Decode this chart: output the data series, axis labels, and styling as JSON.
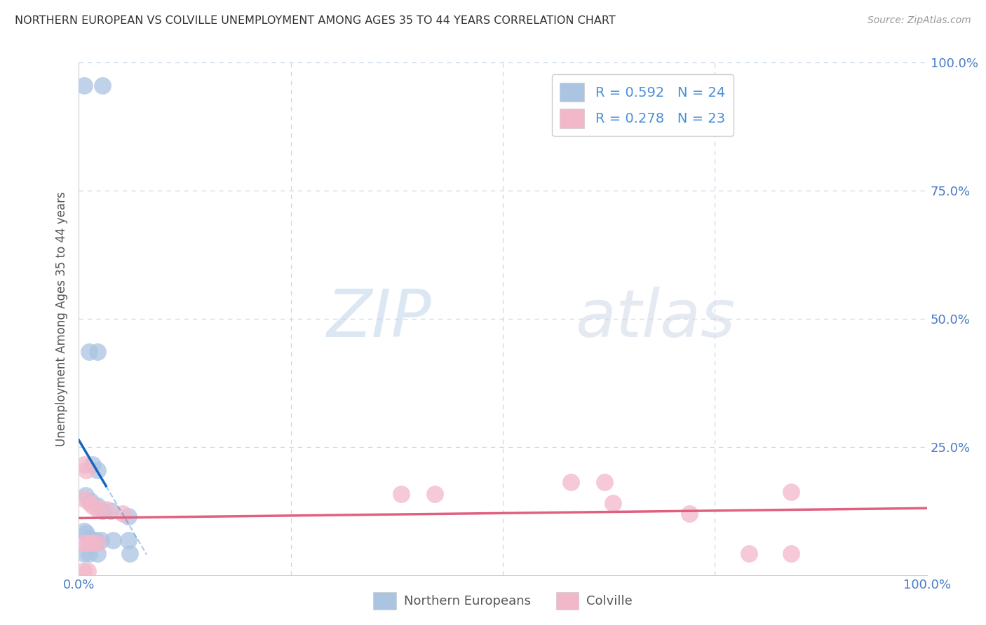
{
  "title": "NORTHERN EUROPEAN VS COLVILLE UNEMPLOYMENT AMONG AGES 35 TO 44 YEARS CORRELATION CHART",
  "source": "Source: ZipAtlas.com",
  "ylabel": "Unemployment Among Ages 35 to 44 years",
  "xlim": [
    0,
    1.0
  ],
  "ylim": [
    0,
    1.0
  ],
  "blue_color": "#aac4e2",
  "pink_color": "#f2b8ca",
  "blue_line_color": "#1565c0",
  "pink_line_color": "#e06080",
  "blue_scatter": [
    [
      0.006,
      0.955
    ],
    [
      0.028,
      0.955
    ],
    [
      0.012,
      0.435
    ],
    [
      0.022,
      0.435
    ],
    [
      0.016,
      0.215
    ],
    [
      0.022,
      0.205
    ],
    [
      0.008,
      0.155
    ],
    [
      0.014,
      0.145
    ],
    [
      0.022,
      0.135
    ],
    [
      0.028,
      0.125
    ],
    [
      0.038,
      0.125
    ],
    [
      0.058,
      0.115
    ],
    [
      0.006,
      0.085
    ],
    [
      0.009,
      0.082
    ],
    [
      0.012,
      0.072
    ],
    [
      0.016,
      0.068
    ],
    [
      0.02,
      0.068
    ],
    [
      0.026,
      0.068
    ],
    [
      0.04,
      0.068
    ],
    [
      0.058,
      0.068
    ],
    [
      0.006,
      0.042
    ],
    [
      0.012,
      0.042
    ],
    [
      0.022,
      0.042
    ],
    [
      0.06,
      0.042
    ]
  ],
  "pink_scatter": [
    [
      0.006,
      0.215
    ],
    [
      0.009,
      0.205
    ],
    [
      0.006,
      0.148
    ],
    [
      0.012,
      0.142
    ],
    [
      0.016,
      0.135
    ],
    [
      0.022,
      0.128
    ],
    [
      0.032,
      0.128
    ],
    [
      0.052,
      0.12
    ],
    [
      0.006,
      0.062
    ],
    [
      0.01,
      0.062
    ],
    [
      0.016,
      0.062
    ],
    [
      0.022,
      0.062
    ],
    [
      0.38,
      0.158
    ],
    [
      0.42,
      0.158
    ],
    [
      0.58,
      0.182
    ],
    [
      0.62,
      0.182
    ],
    [
      0.63,
      0.14
    ],
    [
      0.72,
      0.12
    ],
    [
      0.79,
      0.042
    ],
    [
      0.84,
      0.042
    ],
    [
      0.84,
      0.162
    ],
    [
      0.005,
      0.008
    ],
    [
      0.01,
      0.008
    ]
  ],
  "R_blue": 0.592,
  "N_blue": 24,
  "R_pink": 0.278,
  "N_pink": 23,
  "watermark_zip": "ZIP",
  "watermark_atlas": "atlas",
  "background_color": "#ffffff",
  "grid_color": "#c8d8e8",
  "tick_color": "#4a7cc7",
  "label_color": "#555555"
}
